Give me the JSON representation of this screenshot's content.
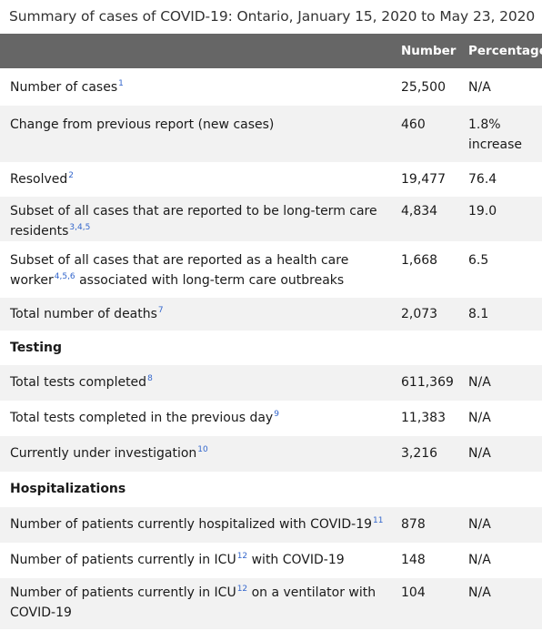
{
  "caption": "Summary of cases of COVID-19: Ontario, January 15, 2020 to May 23, 2020",
  "headers": {
    "label": "",
    "number": "Number",
    "percentage": "Percentage"
  },
  "rows": [
    {
      "label": "Number of cases",
      "sup": "1",
      "number": "25,500",
      "percentage": "N/A"
    },
    {
      "label": "Change from previous report (new cases)",
      "sup": "",
      "number": "460",
      "percentage": "1.8% increase"
    },
    {
      "label": "Resolved",
      "sup": "2",
      "number": "19,477",
      "percentage": "76.4"
    },
    {
      "label": "Subset of all cases that are reported to be long-term care residents",
      "sup": "3,4,5",
      "number": "4,834",
      "percentage": "19.0"
    },
    {
      "label_pre": "Subset of all cases that are reported as a health care worker",
      "sup": "4,5,6",
      "label_post": " associated with long-term care outbreaks",
      "number": "1,668",
      "percentage": "6.5"
    },
    {
      "label": "Total number of deaths",
      "sup": "7",
      "number": "2,073",
      "percentage": "8.1"
    },
    {
      "section": "Testing"
    },
    {
      "label": "Total tests completed",
      "sup": "8",
      "number": "611,369",
      "percentage": "N/A"
    },
    {
      "label": "Total tests completed in the previous day",
      "sup": "9",
      "number": "11,383",
      "percentage": "N/A"
    },
    {
      "label": "Currently under investigation",
      "sup": "10",
      "number": "3,216",
      "percentage": "N/A"
    },
    {
      "section": "Hospitalizations"
    },
    {
      "label": "Number of patients currently hospitalized with COVID-19",
      "sup": "11",
      "number": "878",
      "percentage": "N/A"
    },
    {
      "label_pre": "Number of patients currently in ICU",
      "sup": "12",
      "label_post": " with COVID-19",
      "number": "148",
      "percentage": "N/A"
    },
    {
      "label_pre": "Number of patients currently in ICU",
      "sup": "12",
      "label_post": " on a ventilator with COVID-19",
      "number": "104",
      "percentage": "N/A"
    }
  ]
}
